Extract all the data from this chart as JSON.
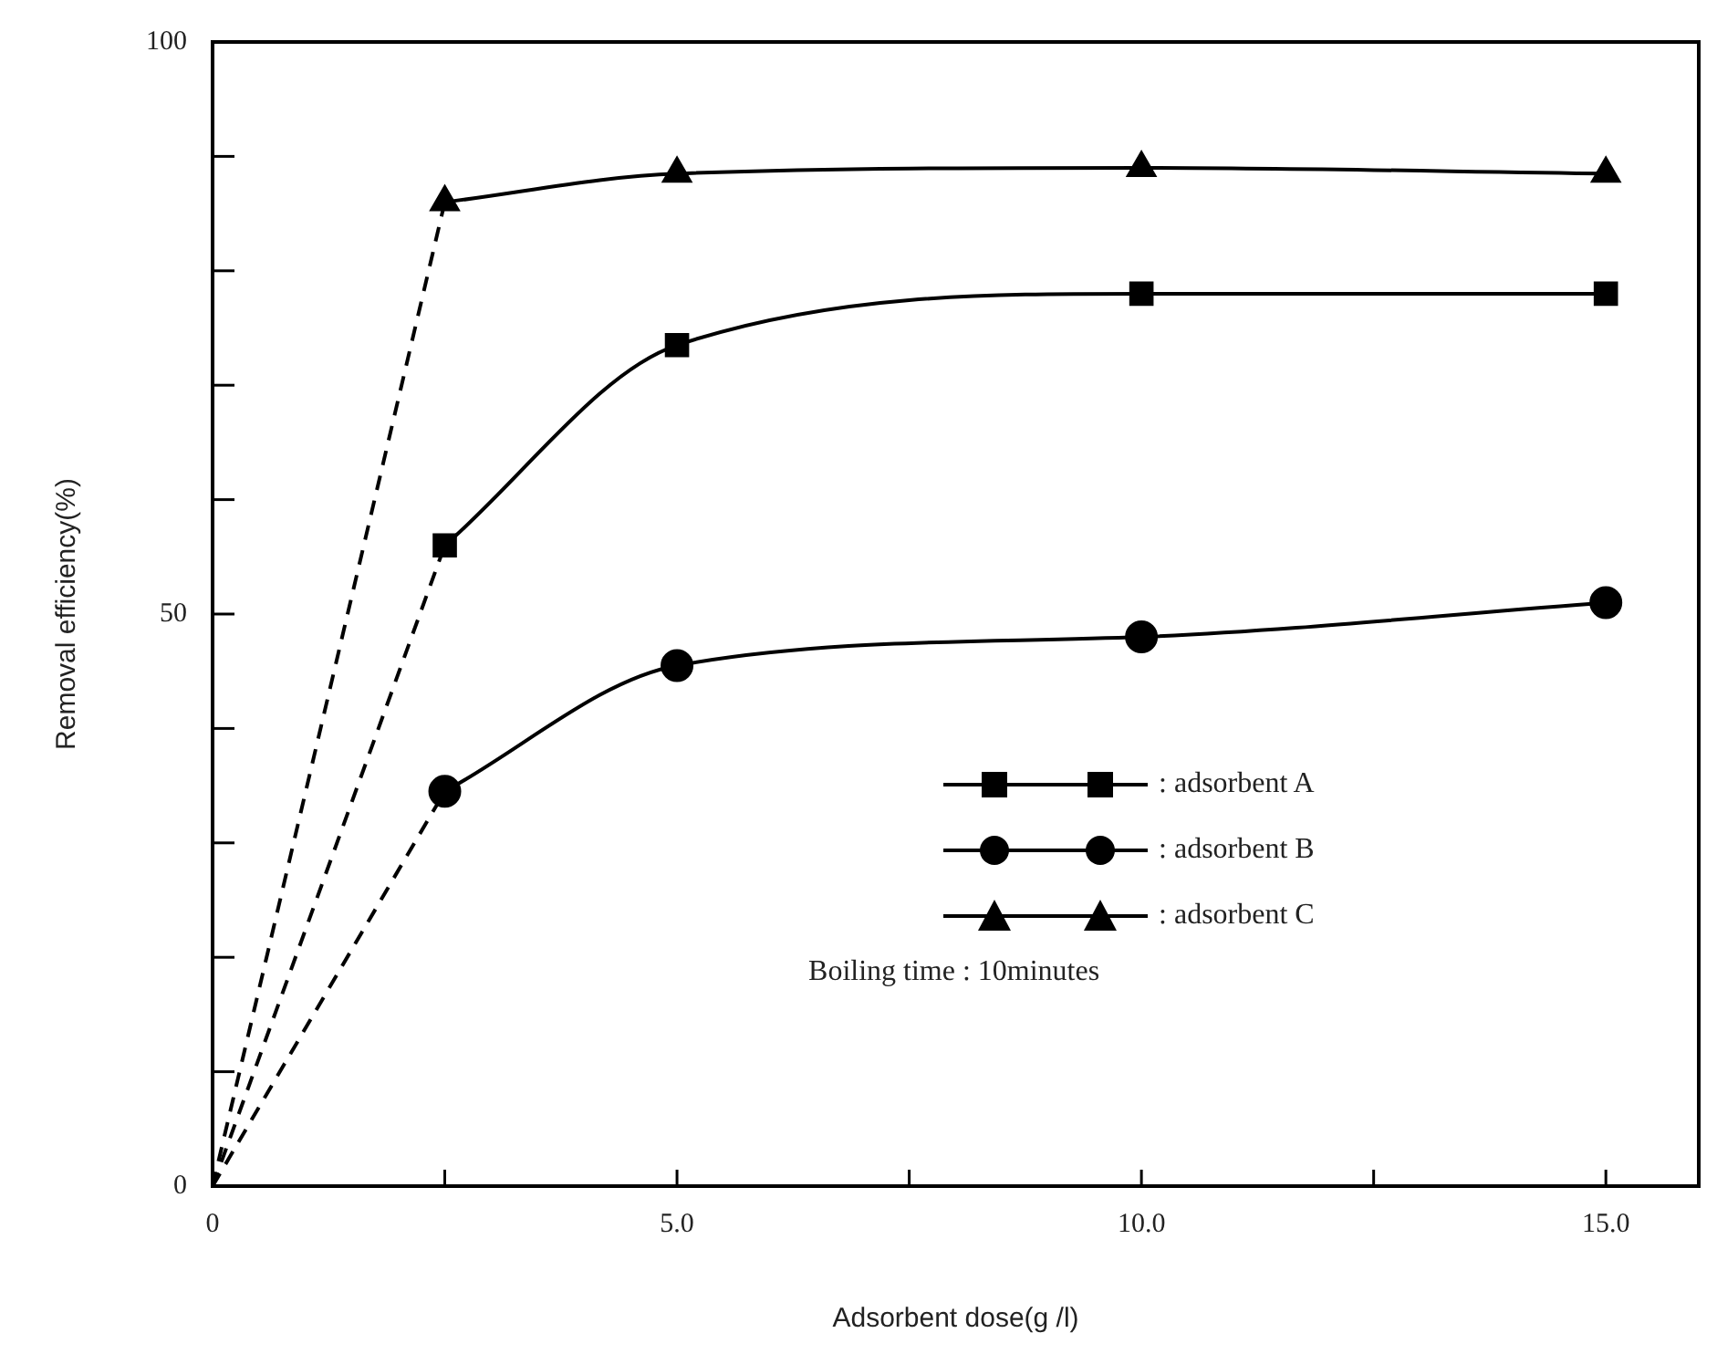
{
  "chart_data": {
    "type": "line",
    "xlabel": "Adsorbent dose(g /l)",
    "ylabel": "Removal efficiency(%)",
    "xlim": [
      0,
      16
    ],
    "ylim": [
      0,
      100
    ],
    "xticks": [
      0,
      {
        "value": 2.5,
        "label": null
      },
      {
        "value": 5,
        "label": "5.0"
      },
      {
        "value": 7.5,
        "label": null
      },
      {
        "value": 10,
        "label": "10.0"
      },
      {
        "value": 12.5,
        "label": null
      },
      {
        "value": 15,
        "label": "15.0"
      }
    ],
    "yticks": [
      0,
      {
        "value": 10,
        "label": null
      },
      {
        "value": 20,
        "label": null
      },
      {
        "value": 30,
        "label": null
      },
      {
        "value": 40,
        "label": null
      },
      50,
      {
        "value": 60,
        "label": null
      },
      {
        "value": 70,
        "label": null
      },
      {
        "value": 80,
        "label": null
      },
      {
        "value": 90,
        "label": null
      },
      100
    ],
    "grid": false,
    "legend": "bottom right",
    "annotations": [
      "Boiling time : 10minutes"
    ],
    "series": [
      {
        "name": ": adsorbent A",
        "color": "#000000",
        "marker": "square",
        "line_style": "solid",
        "x": [
          2.5,
          5,
          10,
          15
        ],
        "values": [
          56,
          73.5,
          78,
          78
        ]
      },
      {
        "name": ": adsorbent B",
        "color": "#000000",
        "marker": "circle",
        "line_style": "solid",
        "x": [
          2.5,
          5,
          10,
          15
        ],
        "values": [
          34.5,
          45.5,
          48,
          51
        ]
      },
      {
        "name": ": adsorbent C",
        "color": "#000000",
        "marker": "triangle",
        "line_style": "solid",
        "x": [
          2.5,
          5,
          10,
          15
        ],
        "values": [
          86,
          88.5,
          89,
          88.5
        ]
      },
      {
        "color": "#000000",
        "marker": "none",
        "line_style": "dashed",
        "x": [
          0,
          2.5
        ],
        "values": [
          0,
          56
        ]
      },
      {
        "color": "#000000",
        "marker": "none",
        "line_style": "dashed",
        "x": [
          0,
          2.5
        ],
        "values": [
          0,
          34.5
        ]
      },
      {
        "color": "#000000",
        "marker": "none",
        "line_style": "dashed",
        "x": [
          0,
          2.5
        ],
        "values": [
          0,
          86
        ]
      }
    ]
  }
}
